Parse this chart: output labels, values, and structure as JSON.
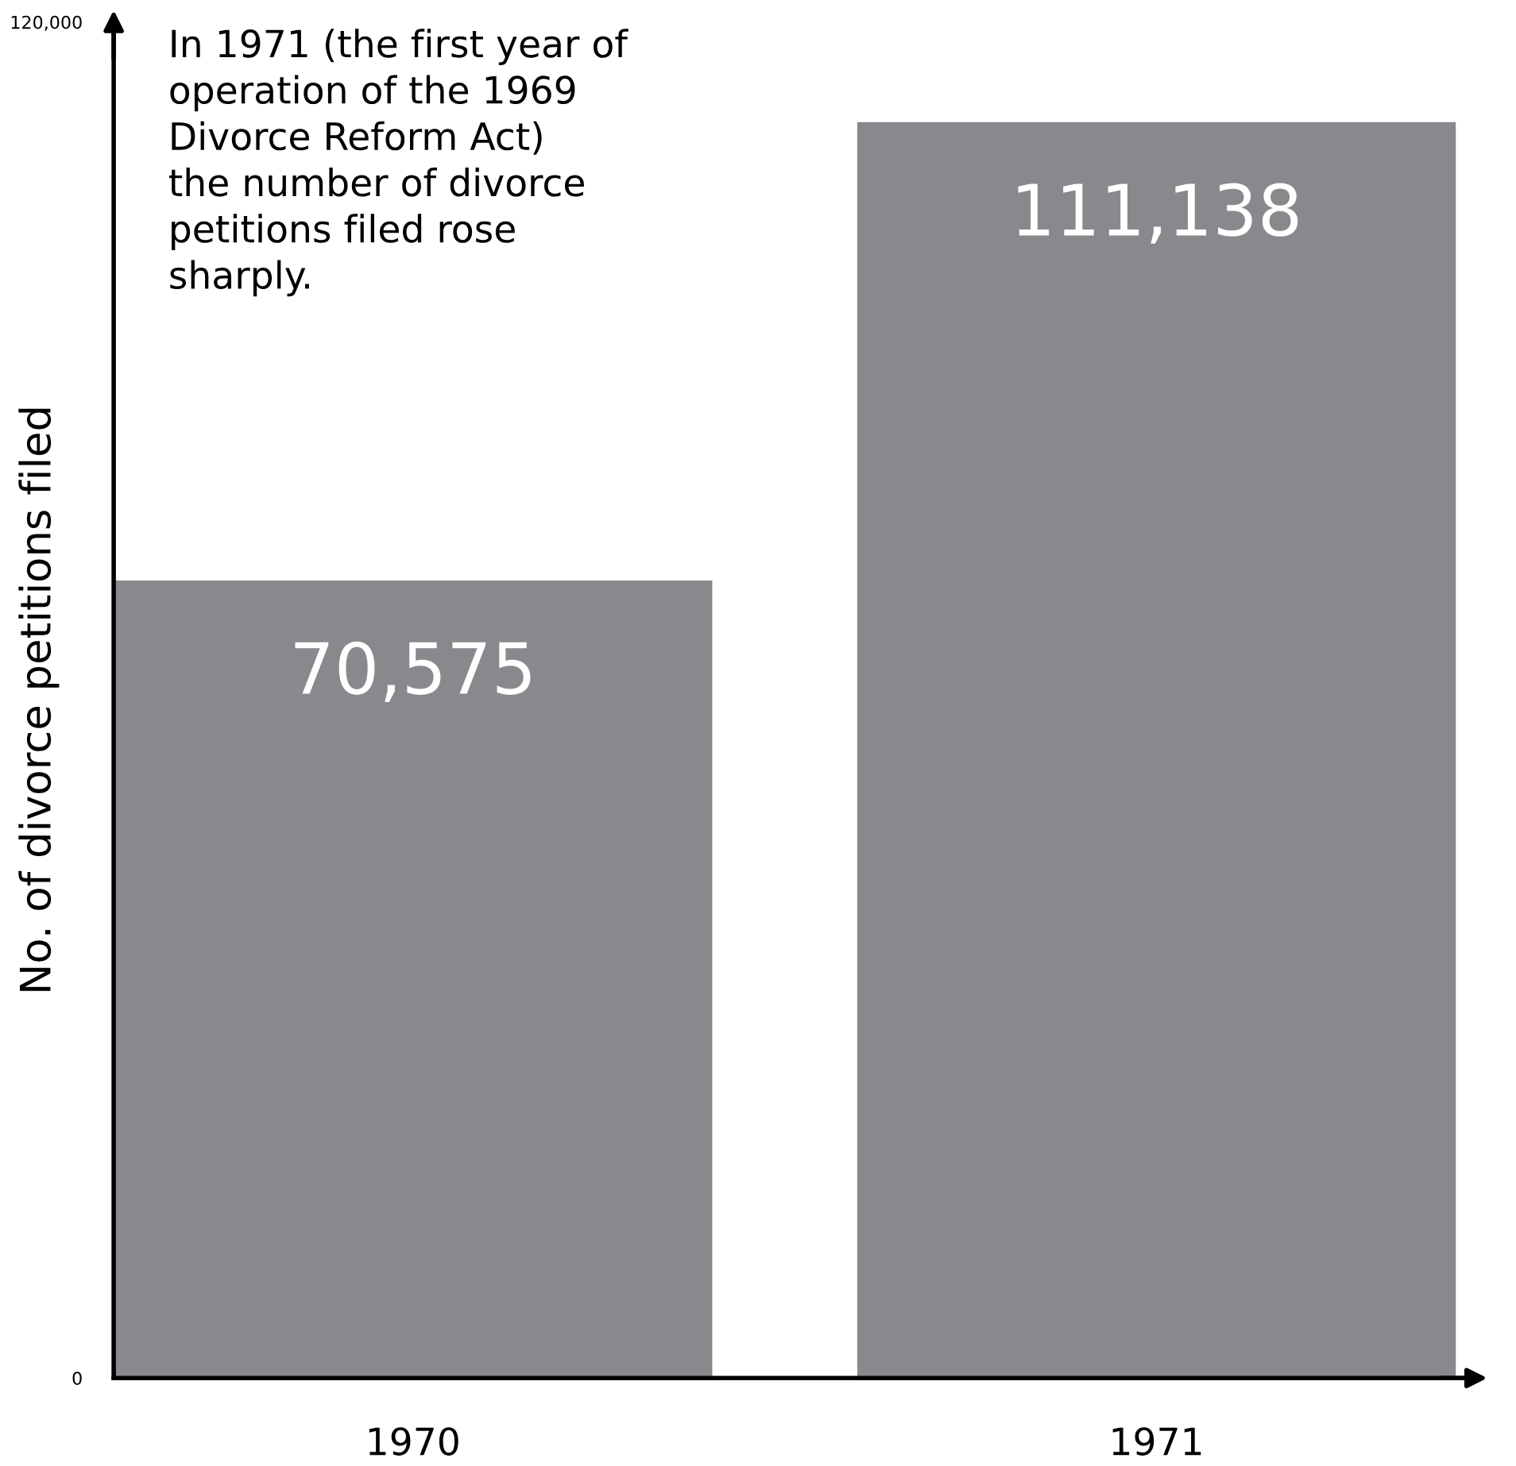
{
  "chart_data": {
    "type": "bar",
    "ylabel": "No. of divorce petitions filed",
    "categories": [
      "1970",
      "1971"
    ],
    "values": [
      70575,
      111138
    ],
    "color": "#89888d",
    "ylim": [
      0,
      120000
    ],
    "yticks": [
      {
        "value": 0,
        "label": "0"
      },
      {
        "value": 120000,
        "label": "120,000"
      }
    ],
    "value_labels": [
      "70,575",
      "111,138"
    ],
    "annotations": [
      "In 1971 (the first year of\noperation of the 1969\nDivorce Reform Act)\nthe number of divorce\npetitions filed rose\nsharply."
    ],
    "grid": false,
    "legend": false
  }
}
